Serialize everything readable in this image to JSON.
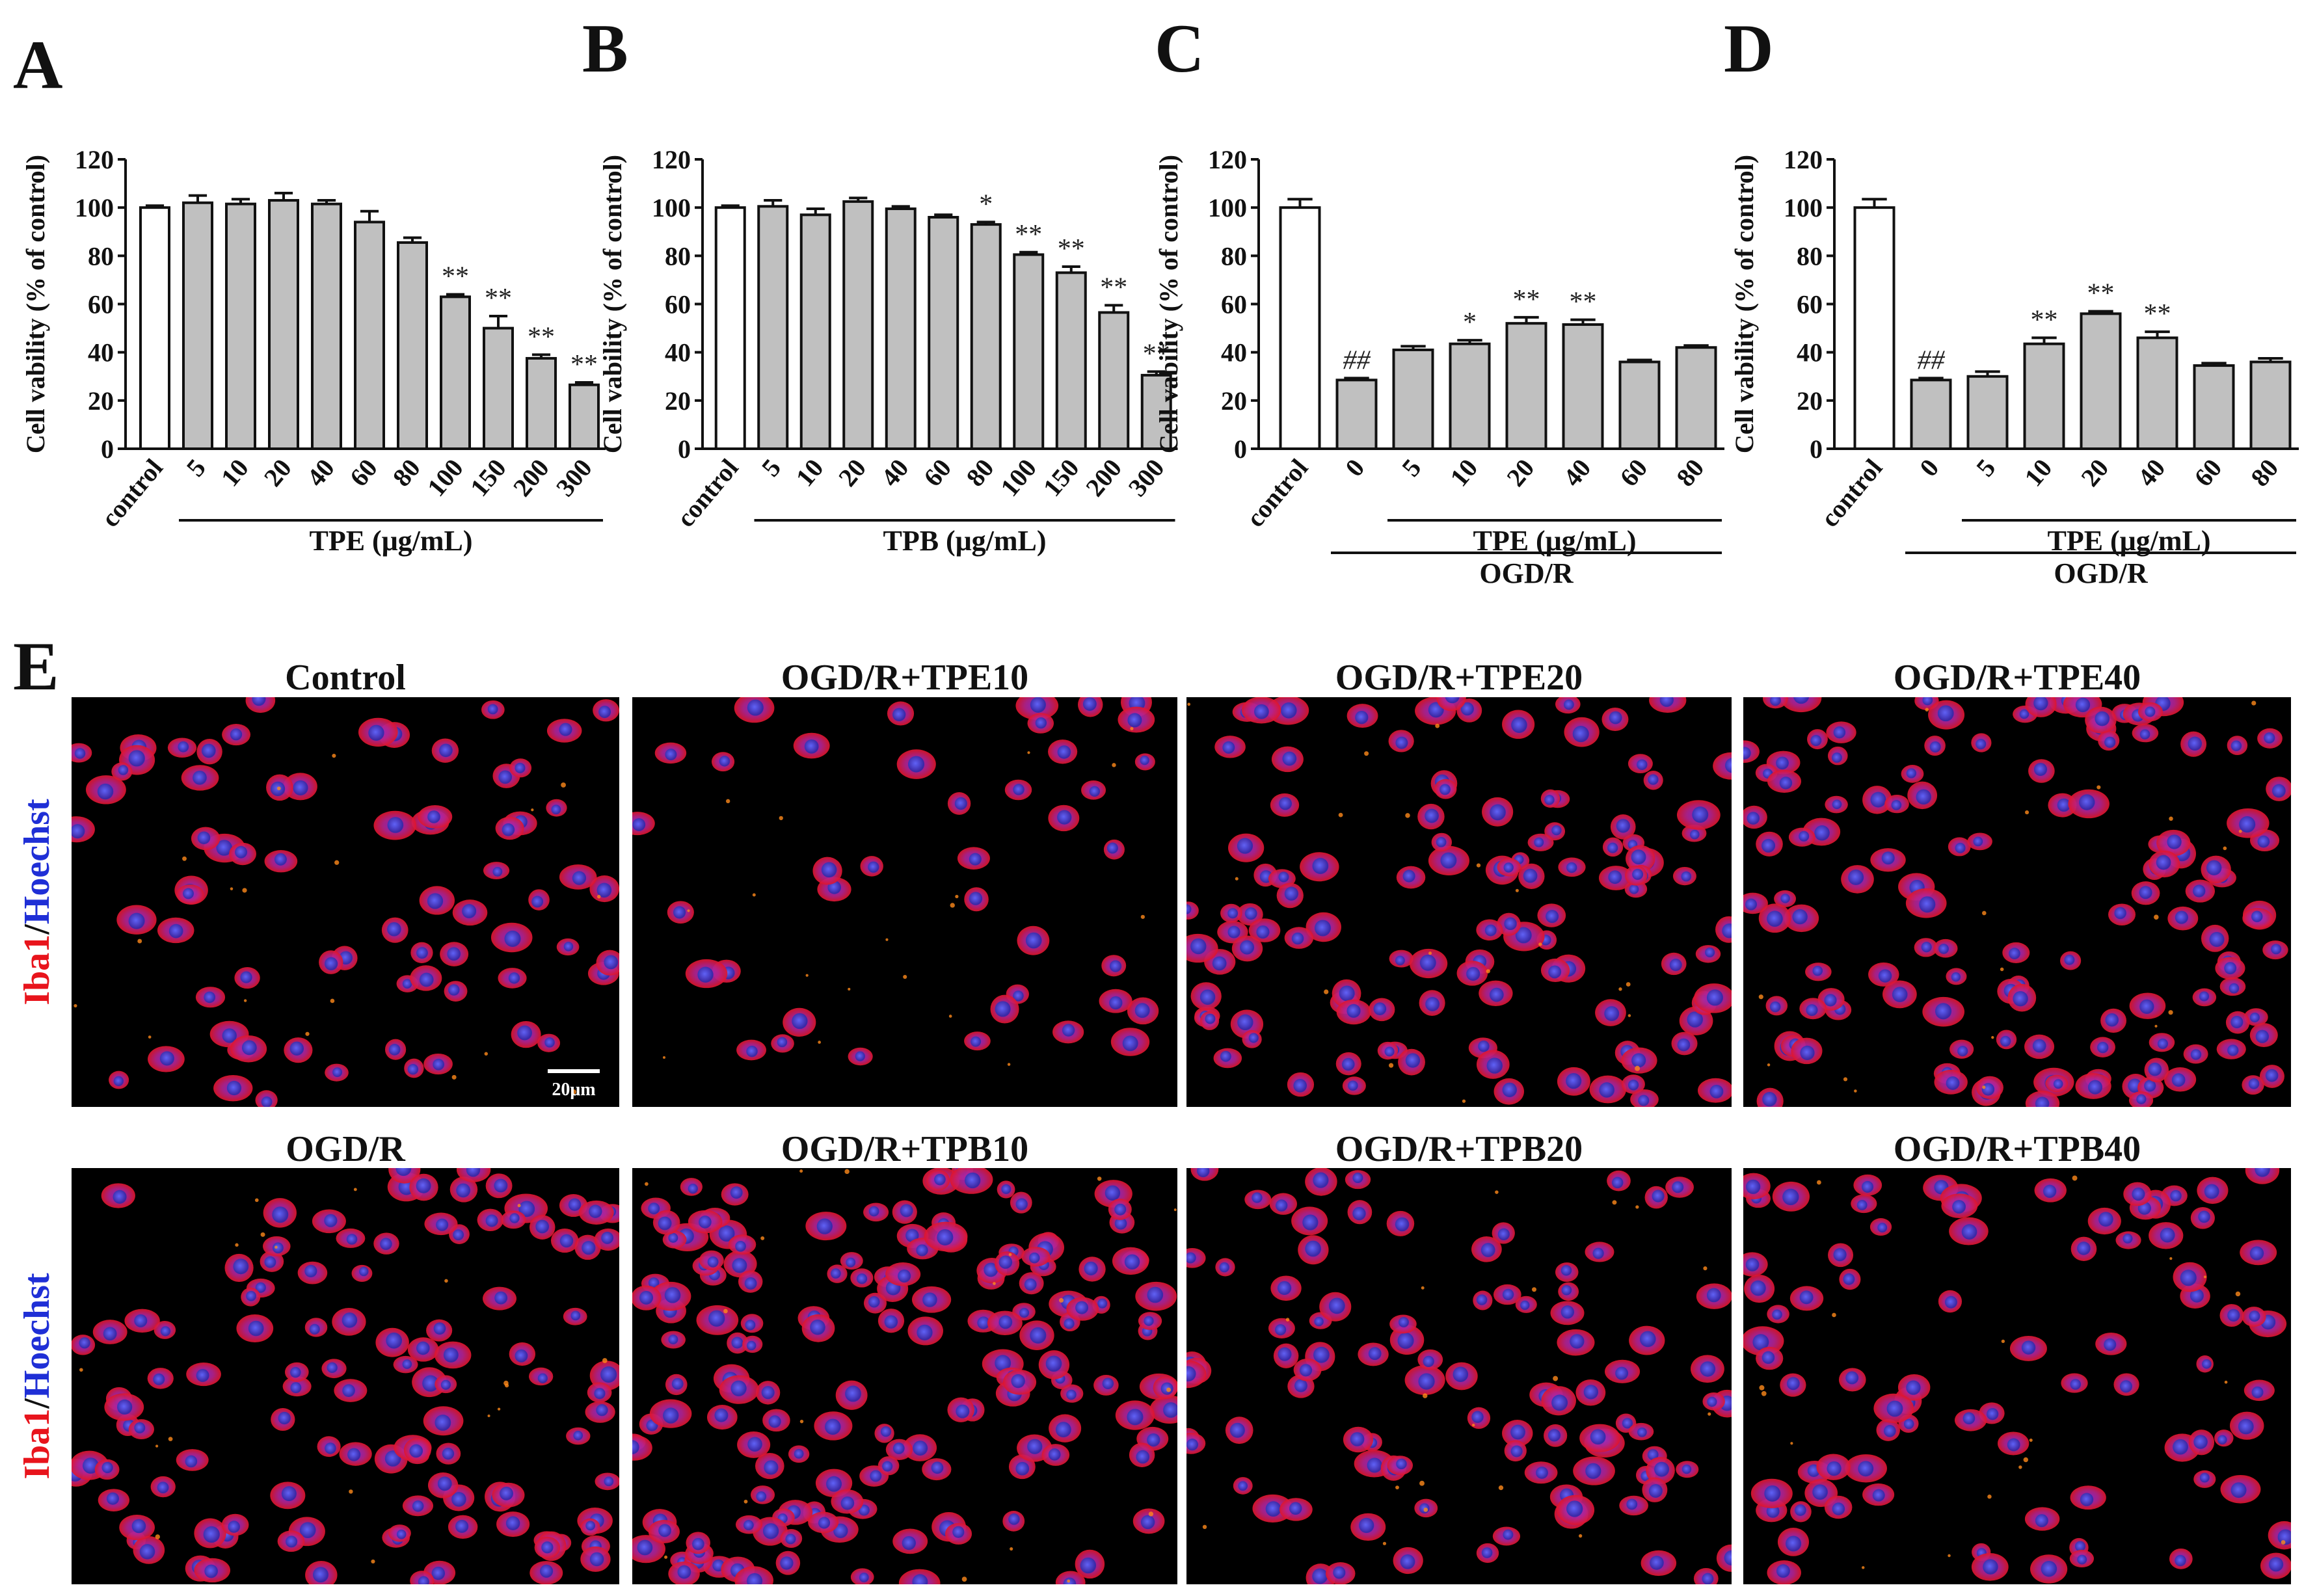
{
  "panel_letters": [
    "A",
    "B",
    "C",
    "D",
    "E"
  ],
  "colors": {
    "control_bar": "#ffffff",
    "treated_bar": "#c0c0c0",
    "iba1": "#e8141c",
    "hoechst": "#1f2fd6",
    "image_bg": "#000000"
  },
  "chart_data": [
    {
      "id": "A",
      "type": "bar",
      "ylabel": "Cell vability (% of control)",
      "ylim": [
        0,
        120
      ],
      "yticks": [
        0,
        20,
        40,
        60,
        80,
        100,
        120
      ],
      "categories": [
        "control",
        "5",
        "10",
        "20",
        "40",
        "60",
        "80",
        "100",
        "150",
        "200",
        "300"
      ],
      "values": [
        100,
        102,
        101.5,
        103,
        101.5,
        94,
        85.5,
        63,
        50,
        37.5,
        26.5
      ],
      "errors": [
        0.8,
        3.0,
        2.0,
        3.0,
        1.5,
        4.5,
        2.0,
        1.0,
        5.0,
        1.5,
        1.0
      ],
      "significance": [
        "",
        "",
        "",
        "",
        "",
        "",
        "",
        "**",
        "**",
        "**",
        "**"
      ],
      "groups": [
        {
          "label": "TPE (μg/mL)",
          "from": 1,
          "to": 10
        }
      ]
    },
    {
      "id": "B",
      "type": "bar",
      "ylabel": "Cell vability (% of control)",
      "ylim": [
        0,
        120
      ],
      "yticks": [
        0,
        20,
        40,
        60,
        80,
        100,
        120
      ],
      "categories": [
        "control",
        "5",
        "10",
        "20",
        "40",
        "60",
        "80",
        "100",
        "150",
        "200",
        "300"
      ],
      "values": [
        100,
        100.5,
        97,
        102.5,
        99.5,
        96,
        93,
        80.5,
        73,
        56.5,
        30.5
      ],
      "errors": [
        0.8,
        2.5,
        2.5,
        1.5,
        1.0,
        1.0,
        1.0,
        1.0,
        2.5,
        3.0,
        1.5
      ],
      "significance": [
        "",
        "",
        "",
        "",
        "",
        "",
        "*",
        "**",
        "**",
        "**",
        "**"
      ],
      "groups": [
        {
          "label": "TPB (μg/mL)",
          "from": 1,
          "to": 10
        }
      ]
    },
    {
      "id": "C",
      "type": "bar",
      "ylabel": "Cell vability (% of control)",
      "ylim": [
        0,
        120
      ],
      "yticks": [
        0,
        20,
        40,
        60,
        80,
        100,
        120
      ],
      "categories": [
        "control",
        "0",
        "5",
        "10",
        "20",
        "40",
        "60",
        "80"
      ],
      "values": [
        100,
        28.5,
        41,
        43.5,
        52,
        51.5,
        36,
        42
      ],
      "errors": [
        3.5,
        0.8,
        1.5,
        1.5,
        2.5,
        2.0,
        0.8,
        0.8
      ],
      "significance": [
        "",
        "##",
        "",
        "*",
        "**",
        "**",
        "",
        ""
      ],
      "groups": [
        {
          "label": "TPE (μg/mL)",
          "from": 2,
          "to": 7
        },
        {
          "label": "OGD/R",
          "from": 1,
          "to": 7
        }
      ]
    },
    {
      "id": "D",
      "type": "bar",
      "ylabel": "Cell vability (% of control)",
      "ylim": [
        0,
        120
      ],
      "yticks": [
        0,
        20,
        40,
        60,
        80,
        100,
        120
      ],
      "categories": [
        "control",
        "0",
        "5",
        "10",
        "20",
        "40",
        "60",
        "80"
      ],
      "values": [
        100,
        28.5,
        30,
        43.5,
        56,
        46,
        34.5,
        36
      ],
      "errors": [
        3.5,
        0.8,
        2.0,
        2.5,
        1.0,
        2.5,
        1.0,
        1.5
      ],
      "significance": [
        "",
        "##",
        "",
        "**",
        "**",
        "**",
        "",
        ""
      ],
      "groups": [
        {
          "label": "TPE (μg/mL)",
          "from": 2,
          "to": 7
        },
        {
          "label": "OGD/R",
          "from": 1,
          "to": 7
        }
      ]
    }
  ],
  "micrographs": {
    "side_label": {
      "red": "Iba1",
      "sep": "/",
      "blue": "Hoechst"
    },
    "scale_bar": "20μm",
    "rows": [
      [
        "Control",
        "OGD/R+TPE10",
        "OGD/R+TPE20",
        "OGD/R+TPE40"
      ],
      [
        "OGD/R",
        "OGD/R+TPB10",
        "OGD/R+TPB20",
        "OGD/R+TPB40"
      ]
    ],
    "cell_density": [
      [
        70,
        40,
        110,
        120
      ],
      [
        110,
        150,
        90,
        80
      ]
    ]
  }
}
